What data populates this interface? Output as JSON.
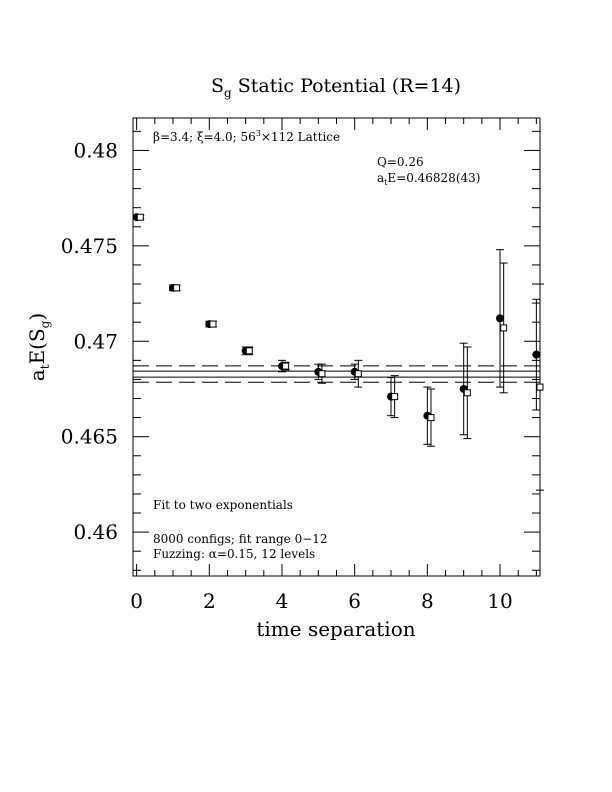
{
  "chart_data": {
    "type": "scatter",
    "title_main": "S",
    "title_sub": "g",
    "title_rest": " Static Potential (R=14)",
    "xlabel": "time separation",
    "ylabel_pre": "a",
    "ylabel_t": "t",
    "ylabel_mid": "E(S",
    "ylabel_g": "g",
    "ylabel_post": ")",
    "xlim": [
      -0.1,
      11.1
    ],
    "ylim": [
      0.4577,
      0.4817
    ],
    "x_ticks": [
      "0",
      "2",
      "4",
      "6",
      "8",
      "10"
    ],
    "y_ticks": [
      "0.46",
      "0.465",
      "0.47",
      "0.475",
      "0.48"
    ],
    "annotations": {
      "lattice_beta": "β=3.4; ",
      "lattice_xi": "ξ=4.0; 56",
      "lattice_sup": "3",
      "lattice_rest": "×112 Lattice",
      "q_value": "Q=0.26",
      "fit_energy_pre": "a",
      "fit_energy_sub": "t",
      "fit_energy_post": "E=0.46828(43)",
      "fit_type": "Fit to two exponentials",
      "configs": "8000 configs; fit range 0−12",
      "fuzzing": "Fuzzing: α=0.15, 12 levels"
    },
    "fit": {
      "central": 0.46828,
      "error": 0.00043,
      "band_lines": [
        0.46871,
        0.46785
      ]
    },
    "series": [
      {
        "marker": "filled-circle",
        "x": [
          0,
          1,
          2,
          3,
          4,
          5,
          6,
          7,
          8,
          9,
          10,
          11
        ],
        "y": [
          0.4765,
          0.4728,
          0.4709,
          0.4695,
          0.4687,
          0.4684,
          0.4684,
          0.4671,
          0.4661,
          0.4675,
          0.4712,
          0.4693
        ],
        "err": [
          0.0001,
          0.00015,
          0.00015,
          0.0002,
          0.0003,
          0.0004,
          0.0004,
          0.001,
          0.0015,
          0.0024,
          0.0036,
          0.0029
        ]
      },
      {
        "marker": "open-square",
        "x": [
          0.1,
          1.1,
          2.1,
          3.1,
          4.1,
          5.1,
          6.1,
          7.1,
          8.1,
          9.1,
          10.1,
          11.1
        ],
        "y": [
          0.4765,
          0.4728,
          0.4709,
          0.4695,
          0.4687,
          0.4683,
          0.4683,
          0.4671,
          0.466,
          0.4673,
          0.4707,
          0.4676
        ],
        "err": [
          0.0001,
          0.00015,
          0.00015,
          0.0002,
          0.0002,
          0.0005,
          0.0007,
          0.0011,
          0.0015,
          0.0024,
          0.0034,
          0.0054
        ]
      }
    ]
  }
}
